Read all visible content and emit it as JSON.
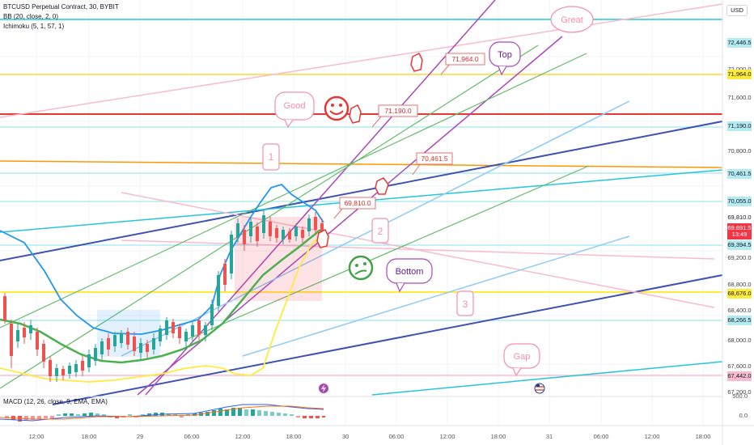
{
  "header": {
    "symbol_line": "BTCUSD Perpetual Contract, 30, BYBIT",
    "indicator_bb": "BB (20, close, 2, 0)",
    "indicator_ichimoku": "Ichimoku (5, 1, 57, 1)",
    "currency_button": "USD"
  },
  "macd_legend": "MACD (12, 26, close, 9, EMA, EMA)",
  "price_axis": [
    {
      "label": "72,446.5",
      "color": "#b2ebf2",
      "text_color": "#131722"
    },
    {
      "label": "72,000.0",
      "color": "#ffffff",
      "text_color": "#444"
    },
    {
      "label": "71,964.0",
      "color": "#ffeb3b",
      "text_color": "#131722"
    },
    {
      "label": "71,600.0",
      "color": "#ffffff",
      "text_color": "#444"
    },
    {
      "label": "71,190.0",
      "color": "#b2ebf2",
      "text_color": "#131722"
    },
    {
      "label": "70,800.0",
      "color": "#ffffff",
      "text_color": "#444"
    },
    {
      "label": "70,461.5",
      "color": "#b2ebf2",
      "text_color": "#131722"
    },
    {
      "label": "70,055.0",
      "color": "#b2ebf2",
      "text_color": "#131722"
    },
    {
      "label": "69,810.0",
      "color": "#ffffff",
      "text_color": "#131722"
    },
    {
      "label": "69,691.5",
      "color": "#f23645",
      "text_color": "#ffffff"
    },
    {
      "label": "13:49",
      "color": "#f23645",
      "text_color": "#ffffff"
    },
    {
      "label": "69,394.5",
      "color": "#b2ebf2",
      "text_color": "#131722"
    },
    {
      "label": "69,200.0",
      "color": "#ffffff",
      "text_color": "#444"
    },
    {
      "label": "68,800.0",
      "color": "#ffffff",
      "text_color": "#444"
    },
    {
      "label": "68,676.0",
      "color": "#ffeb3b",
      "text_color": "#131722"
    },
    {
      "label": "68,400.0",
      "color": "#ffffff",
      "text_color": "#444"
    },
    {
      "label": "68,266.5",
      "color": "#b2ebf2",
      "text_color": "#131722"
    },
    {
      "label": "68,000.0",
      "color": "#ffffff",
      "text_color": "#444"
    },
    {
      "label": "67,600.0",
      "color": "#ffffff",
      "text_color": "#444"
    },
    {
      "label": "67,442.0",
      "color": "#f8bbd0",
      "text_color": "#131722"
    },
    {
      "label": "67,200.0",
      "color": "#ffffff",
      "text_color": "#444"
    }
  ],
  "macd_axis": [
    "500.0",
    "0.0"
  ],
  "time_axis": [
    "12:00",
    "18:00",
    "29",
    "06:00",
    "12:00",
    "18:00",
    "30",
    "06:00",
    "12:00",
    "18:00",
    "31",
    "06:00",
    "12:00",
    "18:00"
  ],
  "annotations": {
    "great": "Great",
    "top": "Top",
    "good": "Good",
    "bottom": "Bottom",
    "gap": "Gap",
    "wave1": "1",
    "wave2": "2",
    "wave3": "3",
    "target_71964": "71,964.0",
    "target_71190": "71,190.0",
    "target_70461": "70,461.5",
    "target_69810": "69,810.0"
  },
  "colors": {
    "up_candle": "#26a69a",
    "down_candle": "#ef5350",
    "bb_line": "#2196f3",
    "ichimoku_green": "#4caf50",
    "ichimoku_yellow": "#ffeb3b",
    "accent_red": "#f23645",
    "grid": "#f0f3fa"
  },
  "icons": [
    "lightning-event-icon",
    "us-flag-event-icon",
    "smiley-face-icon",
    "sad-face-icon",
    "thumb-pointer-icon"
  ]
}
